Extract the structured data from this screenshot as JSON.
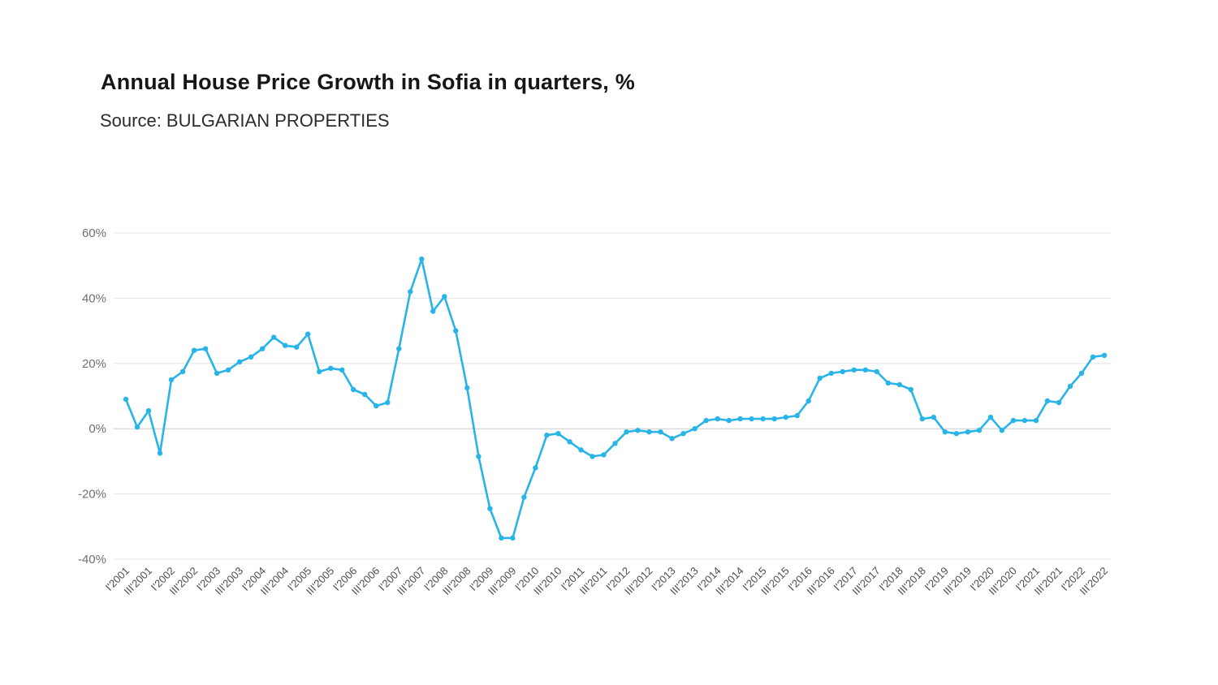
{
  "chart_data": {
    "type": "line",
    "title": "Annual House Price Growth in Sofia in quarters, %",
    "subtitle": "Source: BULGARIAN PROPERTIES",
    "ylabel": "",
    "xlabel": "",
    "ylim": [
      -40,
      60
    ],
    "yticks": [
      60,
      40,
      20,
      0,
      -20,
      -40
    ],
    "ytick_suffix": "%",
    "x_tick_every": 2,
    "grid": true,
    "legend": false,
    "line_color": "#29b4e8",
    "marker": "circle",
    "x": [
      "I'2001",
      "II'2001",
      "III'2001",
      "IV'2001",
      "I'2002",
      "II'2002",
      "III'2002",
      "IV'2002",
      "I'2003",
      "II'2003",
      "III'2003",
      "IV'2003",
      "I'2004",
      "II'2004",
      "III'2004",
      "IV'2004",
      "I'2005",
      "II'2005",
      "III'2005",
      "IV'2005",
      "I'2006",
      "II'2006",
      "III'2006",
      "IV'2006",
      "I'2007",
      "II'2007",
      "III'2007",
      "IV'2007",
      "I'2008",
      "II'2008",
      "III'2008",
      "IV'2008",
      "I'2009",
      "II'2009",
      "III'2009",
      "IV'2009",
      "I'2010",
      "II'2010",
      "III'2010",
      "IV'2010",
      "I'2011",
      "II'2011",
      "III'2011",
      "IV'2011",
      "I'2012",
      "II'2012",
      "III'2012",
      "IV'2012",
      "I'2013",
      "II'2013",
      "III'2013",
      "IV'2013",
      "I'2014",
      "II'2014",
      "III'2014",
      "IV'2014",
      "I'2015",
      "II'2015",
      "III'2015",
      "IV'2015",
      "I'2016",
      "II'2016",
      "III'2016",
      "IV'2016",
      "I'2017",
      "II'2017",
      "III'2017",
      "IV'2017",
      "I'2018",
      "II'2018",
      "III'2018",
      "IV'2018",
      "I'2019",
      "II'2019",
      "III'2019",
      "IV'2019",
      "I'2020",
      "II'2020",
      "III'2020",
      "IV'2020",
      "I'2021",
      "II'2021",
      "III'2021",
      "IV'2021",
      "I'2022",
      "II'2022",
      "III'2022"
    ],
    "values": [
      9,
      0.5,
      5.5,
      -7.5,
      15,
      17.5,
      24,
      24.5,
      17,
      18,
      20.5,
      22,
      24.5,
      28,
      25.5,
      25,
      29,
      17.5,
      18.5,
      18,
      12,
      10.5,
      7,
      8,
      24.5,
      42,
      52,
      36,
      40.5,
      30,
      12.5,
      -8.5,
      -24.5,
      -33.5,
      -33.5,
      -21,
      -12,
      -2,
      -1.5,
      -4,
      -6.5,
      -8.5,
      -8,
      -4.5,
      -1,
      -0.5,
      -1,
      -1,
      -3,
      -1.5,
      0,
      2.5,
      3,
      2.5,
      3,
      3,
      3,
      3,
      3.5,
      4,
      8.5,
      15.5,
      17,
      17.5,
      18,
      18,
      17.5,
      14,
      13.5,
      12,
      3,
      3.5,
      -1,
      -1.5,
      -1,
      -0.5,
      3.5,
      -0.5,
      2.5,
      2.5,
      2.5,
      8.5,
      8,
      13,
      17,
      22,
      22.5
    ]
  }
}
